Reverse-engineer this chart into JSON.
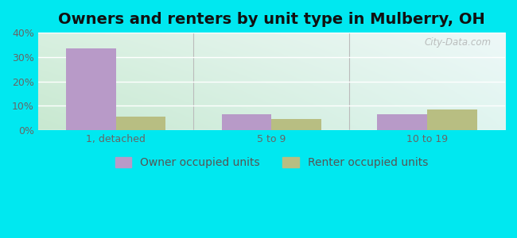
{
  "title": "Owners and renters by unit type in Mulberry, OH",
  "categories": [
    "1, detached",
    "5 to 9",
    "10 to 19"
  ],
  "owner_values": [
    33.5,
    6.5,
    6.5
  ],
  "renter_values": [
    5.5,
    4.5,
    8.5
  ],
  "owner_color": "#b89ac8",
  "renter_color": "#b8be82",
  "ylim": [
    0,
    40
  ],
  "yticks": [
    0,
    10,
    20,
    30,
    40
  ],
  "ytick_labels": [
    "0%",
    "10%",
    "20%",
    "30%",
    "40%"
  ],
  "bar_width": 0.32,
  "outer_bg": "#00e8f0",
  "bg_color_topleft": "#d8f0e0",
  "bg_color_topright": "#e8f8f8",
  "bg_color_bottomleft": "#c8e8d0",
  "bg_color_bottomright": "#e0f5f0",
  "legend_labels": [
    "Owner occupied units",
    "Renter occupied units"
  ],
  "watermark": "City-Data.com",
  "title_fontsize": 14,
  "tick_fontsize": 9,
  "legend_fontsize": 10
}
